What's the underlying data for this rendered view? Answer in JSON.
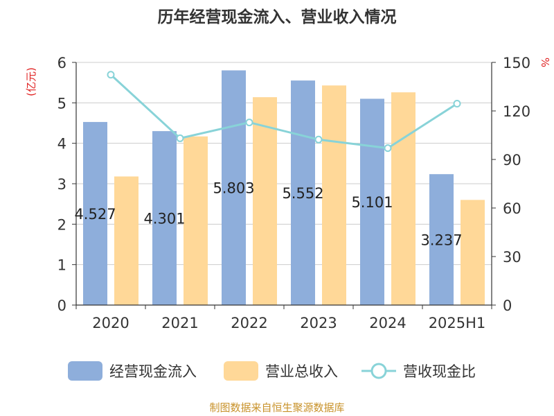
{
  "chart_data": {
    "type": "bar",
    "title": "历年经营现金流入、营业收入情况",
    "categories": [
      "2020",
      "2021",
      "2022",
      "2023",
      "2024",
      "2025H1"
    ],
    "left_axis": {
      "label": "(亿元)",
      "ylim": [
        0,
        6
      ],
      "ticks": [
        0,
        1,
        2,
        3,
        4,
        5,
        6
      ]
    },
    "right_axis": {
      "label": "%",
      "ylim": [
        0,
        150
      ],
      "ticks": [
        0,
        30,
        60,
        90,
        120,
        150
      ]
    },
    "grid": true,
    "legend_position": "bottom",
    "series": [
      {
        "name": "经营现金流入",
        "type": "bar",
        "axis": "left",
        "color": "#8eaedb",
        "values": [
          4.527,
          4.301,
          5.803,
          5.552,
          5.101,
          3.237
        ],
        "data_labels": [
          "4.527",
          "4.301",
          "5.803",
          "5.552",
          "5.101",
          "3.237"
        ]
      },
      {
        "name": "营业总收入",
        "type": "bar",
        "axis": "left",
        "color": "#ffd898",
        "values": [
          3.18,
          4.17,
          5.14,
          5.43,
          5.26,
          2.6
        ]
      },
      {
        "name": "营收现金比",
        "type": "line",
        "axis": "right",
        "color": "#88d3d8",
        "values": [
          142.4,
          103.1,
          112.9,
          102.3,
          97.0,
          124.5
        ]
      }
    ],
    "source_note": "制图数据来自恒生聚源数据库"
  }
}
